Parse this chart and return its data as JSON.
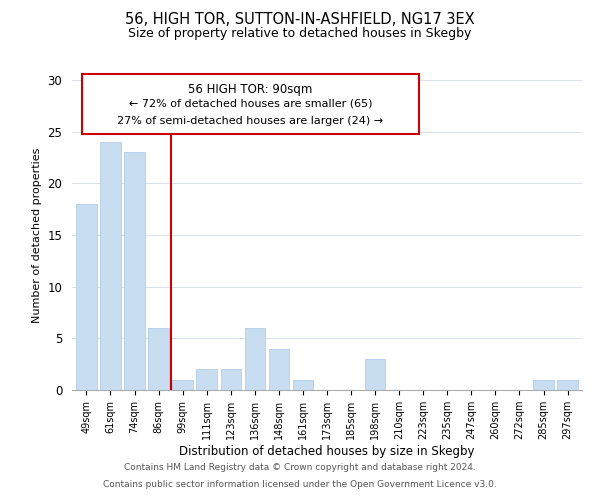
{
  "title": "56, HIGH TOR, SUTTON-IN-ASHFIELD, NG17 3EX",
  "subtitle": "Size of property relative to detached houses in Skegby",
  "xlabel": "Distribution of detached houses by size in Skegby",
  "ylabel": "Number of detached properties",
  "footer_line1": "Contains HM Land Registry data © Crown copyright and database right 2024.",
  "footer_line2": "Contains public sector information licensed under the Open Government Licence v3.0.",
  "annotation_title": "56 HIGH TOR: 90sqm",
  "annotation_line2": "← 72% of detached houses are smaller (65)",
  "annotation_line3": "27% of semi-detached houses are larger (24) →",
  "bar_color": "#c9ddf0",
  "bar_edge_color": "#a8c8e8",
  "vline_color": "#cc0000",
  "annotation_box_edgecolor": "#cc0000",
  "categories": [
    "49sqm",
    "61sqm",
    "74sqm",
    "86sqm",
    "99sqm",
    "111sqm",
    "123sqm",
    "136sqm",
    "148sqm",
    "161sqm",
    "173sqm",
    "185sqm",
    "198sqm",
    "210sqm",
    "223sqm",
    "235sqm",
    "247sqm",
    "260sqm",
    "272sqm",
    "285sqm",
    "297sqm"
  ],
  "values": [
    18,
    24,
    23,
    6,
    1,
    2,
    2,
    6,
    4,
    1,
    0,
    0,
    3,
    0,
    0,
    0,
    0,
    0,
    0,
    1,
    1
  ],
  "vline_position": 3.5,
  "ylim": [
    0,
    30
  ],
  "yticks": [
    0,
    5,
    10,
    15,
    20,
    25,
    30
  ]
}
